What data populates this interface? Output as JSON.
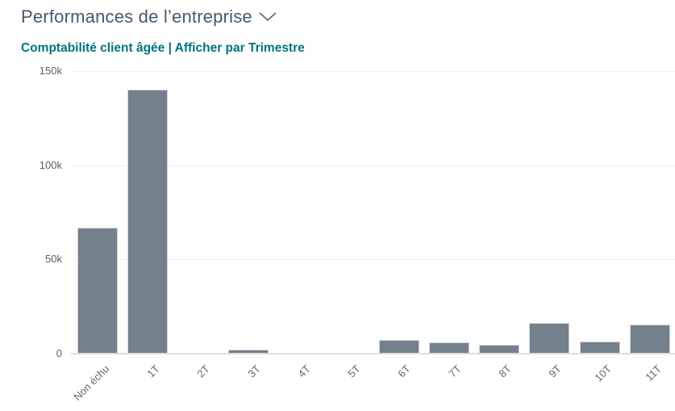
{
  "header": {
    "title": "Performances de l’entreprise",
    "subtitle": "Comptabilité client âgée | Afficher par Trimestre",
    "chevron_icon": "chevron-down"
  },
  "chart_data": {
    "type": "bar",
    "title": "Comptabilité client âgée",
    "view_by": "Trimestre",
    "categories": [
      "Non échu",
      "1T",
      "2T",
      "3T",
      "4T",
      "5T",
      "6T",
      "7T",
      "8T",
      "9T",
      "10T",
      "11T"
    ],
    "values": [
      67000,
      140000,
      0,
      2000,
      0,
      400,
      7200,
      5800,
      4900,
      16500,
      6300,
      15500
    ],
    "xlabel": "",
    "ylabel": "",
    "ylim": [
      0,
      150000
    ],
    "ytick_values": [
      0,
      50000,
      100000,
      150000
    ],
    "ytick_labels": [
      "0",
      "50k",
      "100k",
      "150k"
    ],
    "grid": true,
    "legend": false
  },
  "colors": {
    "background": "#ffffff",
    "title_text": "#47596b",
    "subtitle_text": "#00747e",
    "bar_fill": "#74808c",
    "bar_stroke": "#cfd4dc",
    "gridline": "#ececec",
    "axis_line": "#d9dde5",
    "tick_label": "#606060"
  }
}
